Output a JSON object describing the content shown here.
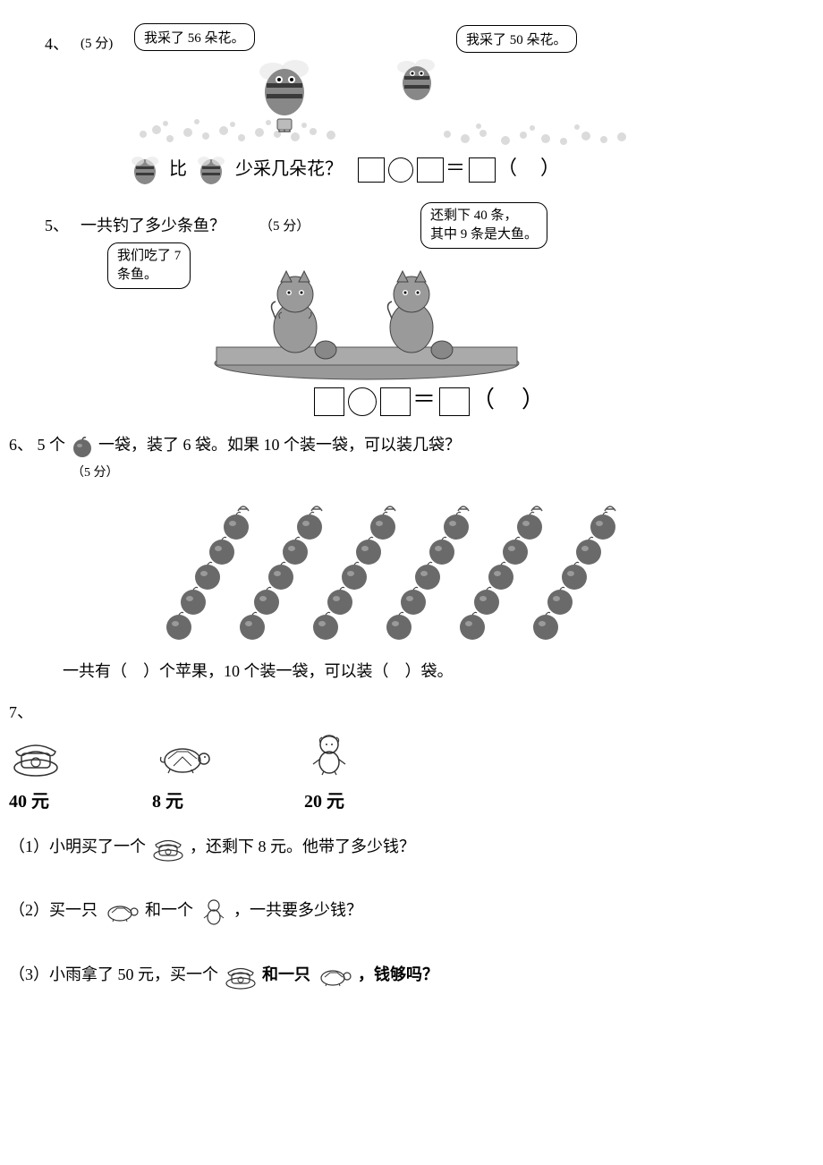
{
  "q4": {
    "num": "4、",
    "points": "(5 分)",
    "bubble_left": "我采了 56 朵花。",
    "bubble_right": "我采了 50 朵花。",
    "compare_mid": "比",
    "compare_end": "少采几朵花？",
    "paren": "（　）"
  },
  "q5": {
    "num": "5、",
    "title": "一共钓了多少条鱼？",
    "points": "（5 分）",
    "bubble_left_l1": "我们吃了 7",
    "bubble_left_l2": "条鱼。",
    "bubble_right_l1": "还剩下 40 条，",
    "bubble_right_l2": "其中 9 条是大鱼。",
    "paren": "（　）"
  },
  "q6": {
    "num": "6、",
    "line1_a": "5 个",
    "line1_b": "一袋，装了 6 袋。如果 10 个装一袋，可以装几袋？",
    "points": "（5 分）",
    "answer": "一共有（　）个苹果，10 个装一袋，可以装（　）袋。",
    "apple_color": "#6a6a6a",
    "apple_highlight": "#9a9a9a",
    "rows": 6,
    "per_row": 5
  },
  "q7": {
    "num": "7、",
    "items": [
      {
        "name": "phone-icon",
        "price": "40 元"
      },
      {
        "name": "turtle-icon",
        "price": "8 元"
      },
      {
        "name": "doll-icon",
        "price": "20 元"
      }
    ],
    "sub1_a": "（1）小明买了一个",
    "sub1_b": "，还剩下 8 元。他带了多少钱？",
    "sub2_a": "（2）买一只",
    "sub2_b": "和一个",
    "sub2_c": "，一共要多少钱？",
    "sub3_a": "（3）小雨拿了 50 元，买一个",
    "sub3_b": "和一只",
    "sub3_c": "，钱够吗？"
  },
  "colors": {
    "bee_body": "#777777",
    "bee_stripe": "#3a3a3a",
    "flower": "#9a9a9a",
    "cat": "#888888",
    "line": "#555555"
  }
}
